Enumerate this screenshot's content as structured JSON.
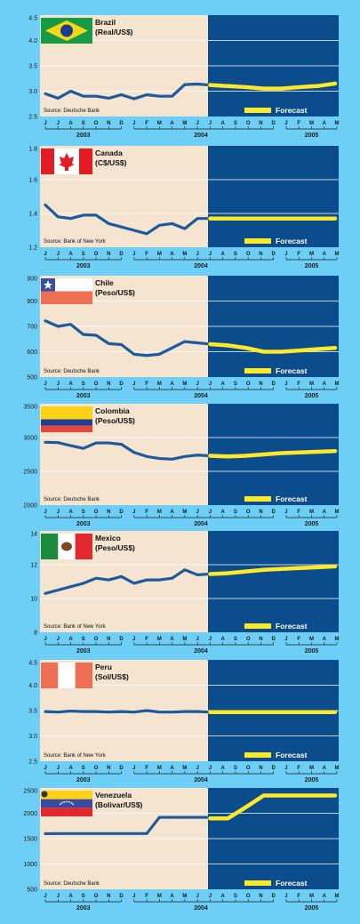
{
  "panel_months": [
    "J",
    "J",
    "A",
    "S",
    "O",
    "N",
    "D",
    "J",
    "F",
    "M",
    "A",
    "M",
    "J",
    "J",
    "A",
    "S",
    "O",
    "N",
    "D",
    "J",
    "F",
    "M",
    "A",
    "M"
  ],
  "year_labels": [
    "2003",
    "2004",
    "2005"
  ],
  "forecast_label": "Forecast",
  "colors": {
    "background": "#6ecff6",
    "history_bg": "#f4e4d0",
    "forecast_bg": "#0b4d8c",
    "history_line": "#1e5a9c",
    "forecast_line": "#fde82a",
    "grid": "#ffffff"
  },
  "chart_data": [
    {
      "type": "line",
      "title": "Brazil",
      "subtitle": "(Real/US$)",
      "source": "Source: Deutsche Bank",
      "flag": "brazil-flag",
      "yticks": [
        "4.5",
        "4.0",
        "3.5",
        "3.0",
        "2.5"
      ],
      "ylim": [
        2.5,
        4.5
      ],
      "history": [
        2.95,
        2.86,
        3.0,
        2.9,
        2.9,
        2.86,
        2.93,
        2.85,
        2.93,
        2.9,
        2.9,
        3.13,
        3.14,
        3.12
      ],
      "forecast": [
        3.12,
        3.1,
        3.08,
        3.05,
        3.05,
        3.08,
        3.1,
        3.15
      ]
    },
    {
      "type": "line",
      "title": "Canada",
      "subtitle": "(C$/US$)",
      "source": "Source: Bank of New York",
      "flag": "canada-flag",
      "yticks": [
        "1.8",
        "1.6",
        "1.4",
        "1.2"
      ],
      "ylim": [
        1.2,
        1.8
      ],
      "history": [
        1.45,
        1.38,
        1.37,
        1.39,
        1.39,
        1.34,
        1.32,
        1.3,
        1.28,
        1.33,
        1.34,
        1.31,
        1.37,
        1.37
      ],
      "forecast": [
        1.37,
        1.37,
        1.37,
        1.37,
        1.37,
        1.37,
        1.37,
        1.37
      ]
    },
    {
      "type": "line",
      "title": "Chile",
      "subtitle": "(Peso/US$)",
      "source": "Source: Deutsche Bank",
      "flag": "chile-flag",
      "yticks": [
        "900",
        "800",
        "700",
        "600",
        "500"
      ],
      "ylim": [
        500,
        900
      ],
      "history": [
        722,
        700,
        708,
        668,
        665,
        632,
        628,
        590,
        585,
        590,
        615,
        640,
        635,
        630
      ],
      "forecast": [
        630,
        625,
        615,
        600,
        600,
        605,
        610,
        615
      ]
    },
    {
      "type": "line",
      "title": "Colombia",
      "subtitle": "(Peso/US$)",
      "source": "Source: Deutsche Bank",
      "flag": "colombia-flag",
      "yticks": [
        "3500",
        "3000",
        "2500",
        "2000"
      ],
      "ylim": [
        2000,
        3500
      ],
      "history": [
        2930,
        2925,
        2880,
        2840,
        2920,
        2920,
        2900,
        2780,
        2720,
        2690,
        2680,
        2720,
        2740,
        2730
      ],
      "forecast": [
        2730,
        2720,
        2730,
        2750,
        2770,
        2780,
        2790,
        2800
      ]
    },
    {
      "type": "line",
      "title": "Mexico",
      "subtitle": "(Peso/US$)",
      "source": "Source: Bank of New York",
      "flag": "mexico-flag",
      "yticks": [
        "14",
        "12",
        "10",
        "8"
      ],
      "ylim": [
        8,
        14
      ],
      "history": [
        10.3,
        10.5,
        10.7,
        10.9,
        11.2,
        11.1,
        11.3,
        10.9,
        11.1,
        11.1,
        11.2,
        11.7,
        11.4,
        11.45
      ],
      "forecast": [
        11.45,
        11.5,
        11.6,
        11.7,
        11.75,
        11.8,
        11.85,
        11.9
      ]
    },
    {
      "type": "line",
      "title": "Peru",
      "subtitle": "(Sol/US$)",
      "source": "Source: Bank of New York",
      "flag": "peru-flag",
      "yticks": [
        "4.5",
        "4.0",
        "3.5",
        "3.0",
        "2.5"
      ],
      "ylim": [
        2.5,
        4.5
      ],
      "history": [
        3.48,
        3.47,
        3.49,
        3.48,
        3.48,
        3.47,
        3.48,
        3.47,
        3.5,
        3.47,
        3.47,
        3.48,
        3.48,
        3.47
      ],
      "forecast": [
        3.47,
        3.47,
        3.47,
        3.47,
        3.47,
        3.47,
        3.47,
        3.47
      ]
    },
    {
      "type": "line",
      "title": "Venezuela",
      "subtitle": "(Bolivar/US$)",
      "source": "Source: Deutsche Bank",
      "flag": "venezuela-flag",
      "yticks": [
        "2500",
        "2000",
        "1500",
        "1000",
        "500"
      ],
      "ylim": [
        500,
        2500
      ],
      "history": [
        1598,
        1600,
        1600,
        1600,
        1600,
        1600,
        1600,
        1600,
        1600,
        1920,
        1920,
        1920,
        1920,
        1920
      ],
      "forecast": [
        1900,
        1900,
        2120,
        2350,
        2350,
        2350,
        2350,
        2350
      ]
    }
  ]
}
